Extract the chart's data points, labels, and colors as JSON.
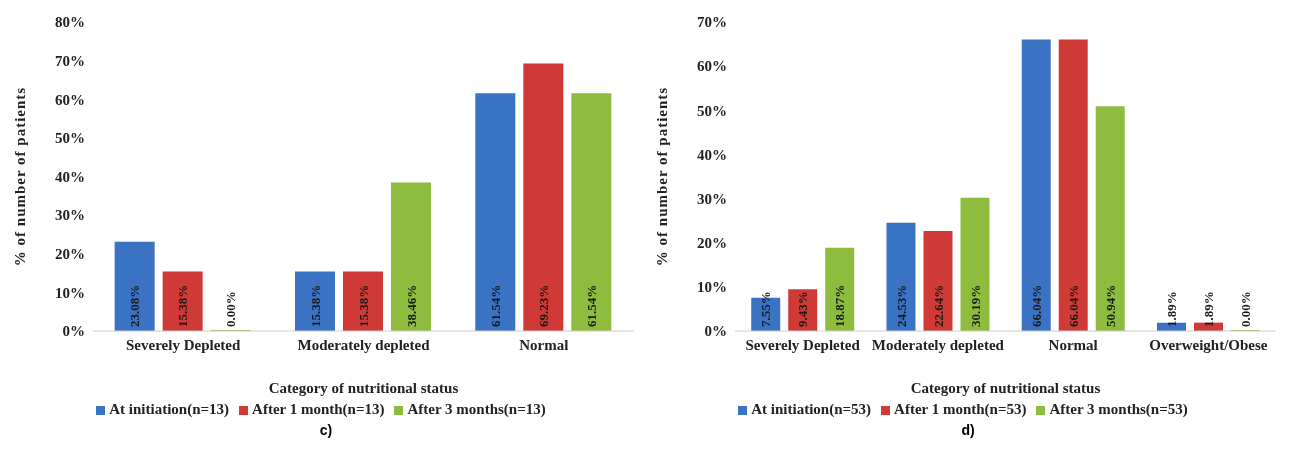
{
  "chart_data": [
    {
      "type": "bar",
      "ylabel": "% of number of patients",
      "xlabel": "Category of nutritional status",
      "categories": [
        "Severely Depleted",
        "Moderately depleted",
        "Normal"
      ],
      "series": [
        {
          "name": "At initiation(n=13)",
          "color": "#3a72c4",
          "values": [
            23.08,
            15.38,
            61.54
          ],
          "value_labels": [
            "23.08%",
            "15.38%",
            "61.54%"
          ]
        },
        {
          "name": "After 1 month(n=13)",
          "color": "#d03a36",
          "values": [
            15.38,
            15.38,
            69.23
          ],
          "value_labels": [
            "15.38%",
            "15.38%",
            "69.23%"
          ]
        },
        {
          "name": "After 3 months(n=13)",
          "color": "#8dbc3e",
          "values": [
            0,
            38.46,
            61.54
          ],
          "value_labels": [
            "0.00%",
            "38.46%",
            "61.54%"
          ]
        }
      ],
      "ylim": [
        0,
        80
      ],
      "yticks": [
        {
          "value": 0,
          "label": "0%"
        },
        {
          "value": 10,
          "label": "10%"
        },
        {
          "value": 20,
          "label": "20%"
        },
        {
          "value": 30,
          "label": "30%"
        },
        {
          "value": 40,
          "label": "40%"
        },
        {
          "value": 50,
          "label": "50%"
        },
        {
          "value": 60,
          "label": "60%"
        },
        {
          "value": 70,
          "label": "70%"
        },
        {
          "value": 80,
          "label": "80%"
        }
      ],
      "grid": false,
      "legend": "bottom",
      "annotations": [
        "c)"
      ]
    },
    {
      "type": "bar",
      "ylabel": "% of number of patients",
      "xlabel": "Category of nutritional status",
      "categories": [
        "Severely Depleted",
        "Moderately depleted",
        "Normal",
        "Overweight/Obese"
      ],
      "series": [
        {
          "name": "At initiation(n=53)",
          "color": "#3a72c4",
          "values": [
            7.55,
            24.53,
            66.04,
            1.89
          ],
          "value_labels": [
            "7.55%",
            "24.53%",
            "66.04%",
            "1.89%"
          ]
        },
        {
          "name": "After 1 month(n=53)",
          "color": "#d03a36",
          "values": [
            9.43,
            22.64,
            66.04,
            1.89
          ],
          "value_labels": [
            "9.43%",
            "22.64%",
            "66.04%",
            "1.89%"
          ]
        },
        {
          "name": "After 3 months(n=53)",
          "color": "#8dbc3e",
          "values": [
            18.87,
            30.19,
            50.94,
            0
          ],
          "value_labels": [
            "18.87%",
            "30.19%",
            "50.94%",
            "0.00%"
          ]
        }
      ],
      "ylim": [
        0,
        70
      ],
      "yticks": [
        {
          "value": 0,
          "label": "0%"
        },
        {
          "value": 10,
          "label": "10%"
        },
        {
          "value": 20,
          "label": "20%"
        },
        {
          "value": 30,
          "label": "30%"
        },
        {
          "value": 40,
          "label": "40%"
        },
        {
          "value": 50,
          "label": "50%"
        },
        {
          "value": 60,
          "label": "60%"
        },
        {
          "value": 70,
          "label": "70%"
        }
      ],
      "grid": false,
      "legend": "bottom",
      "annotations": [
        "d)"
      ]
    }
  ]
}
